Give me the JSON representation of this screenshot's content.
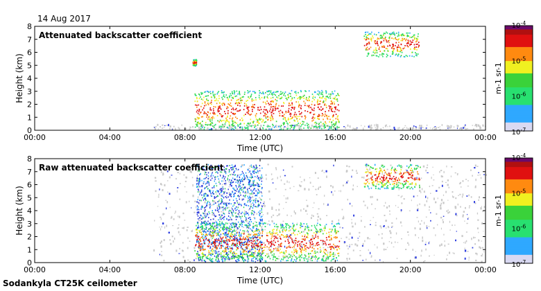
{
  "date": "14 Aug 2017",
  "footer": "Sodankyla CT25K ceilometer",
  "chart_data": [
    {
      "type": "heatmap",
      "title": "Attenuated backscatter coefficient",
      "xlabel": "Time (UTC)",
      "ylabel": "Height (km)",
      "xticks": [
        "00:00",
        "04:00",
        "08:00",
        "12:00",
        "16:00",
        "20:00",
        "00:00"
      ],
      "xlim_hours": [
        0,
        24
      ],
      "yticks": [
        0,
        1,
        2,
        3,
        4,
        5,
        6,
        7,
        8
      ],
      "ylim": [
        0,
        8
      ],
      "colorbar": {
        "label": "m-1 sr-1",
        "ticks": [
          "10-7",
          "10-6",
          "10-5",
          "10-4"
        ],
        "scale": "log",
        "range": [
          1e-07,
          0.0001
        ]
      },
      "features": [
        {
          "name": "instrument noise floor",
          "start_hour": 6.3,
          "end_hour": 24.0,
          "top_km": 0.35,
          "level": "below range"
        },
        {
          "name": "low cloud layer",
          "start_hour": 8.5,
          "end_hour": 16.2,
          "base_km": 0.0,
          "top_km": 3.0,
          "level": "1e-6 to 1e-4"
        },
        {
          "name": "mid-level cloud",
          "start_hour": 8.4,
          "end_hour": 8.6,
          "base_km": 4.9,
          "top_km": 5.4,
          "level": "1e-5 to 1e-4"
        },
        {
          "name": "high cloud",
          "start_hour": 17.5,
          "end_hour": 20.5,
          "base_km": 5.6,
          "top_km": 7.5,
          "level": "1e-5 to 1e-4"
        }
      ]
    },
    {
      "type": "heatmap",
      "title": "Raw attenuated backscatter coefficient",
      "xlabel": "Time (UTC)",
      "ylabel": "Height (km)",
      "xticks": [
        "00:00",
        "04:00",
        "08:00",
        "12:00",
        "16:00",
        "20:00",
        "00:00"
      ],
      "xlim_hours": [
        0,
        24
      ],
      "yticks": [
        0,
        1,
        2,
        3,
        4,
        5,
        6,
        7,
        8
      ],
      "ylim": [
        0,
        8
      ],
      "colorbar": {
        "label": "m-1 sr-1",
        "ticks": [
          "10-7",
          "10-6",
          "10-5",
          "10-4"
        ],
        "scale": "log",
        "range": [
          1e-07,
          0.0001
        ]
      },
      "features": [
        {
          "name": "noise",
          "start_hour": 6.3,
          "end_hour": 24.0,
          "top_km": 7.5,
          "level": "below range"
        },
        {
          "name": "dense noise block",
          "start_hour": 8.6,
          "end_hour": 12.1,
          "base_km": 0.0,
          "top_km": 7.5,
          "level": "1e-7 to 1e-5"
        },
        {
          "name": "low cloud layer",
          "start_hour": 8.5,
          "end_hour": 16.2,
          "base_km": 0.0,
          "top_km": 3.0,
          "level": "1e-6 to 1e-4"
        },
        {
          "name": "high cloud",
          "start_hour": 17.5,
          "end_hour": 20.5,
          "base_km": 5.6,
          "top_km": 7.5,
          "level": "1e-5 to 1e-4"
        }
      ]
    }
  ]
}
